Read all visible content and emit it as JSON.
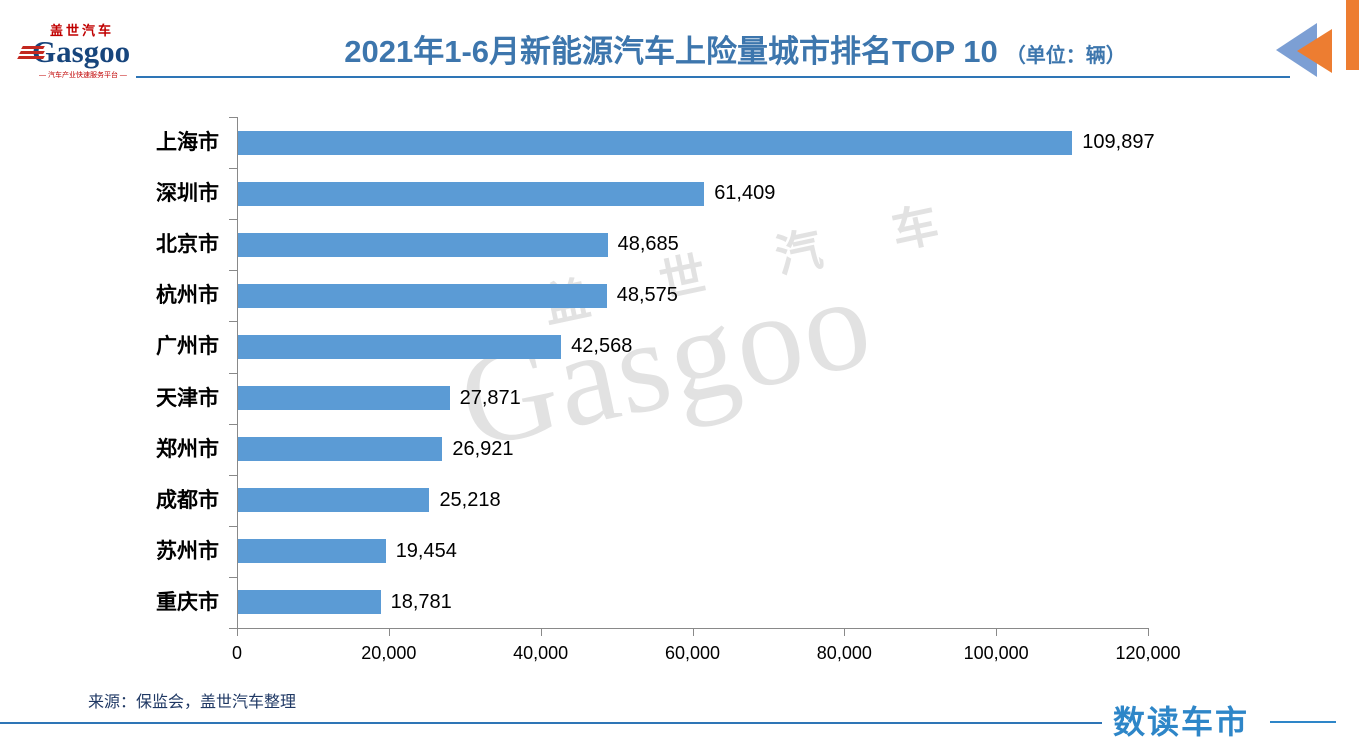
{
  "header": {
    "logo": {
      "cn": "盖世汽车",
      "en": "Gasgoo",
      "tagline": "— 汽车产业快速服务平台 —"
    },
    "title": "2021年1-6月新能源汽车上险量城市排名TOP 10",
    "unit": "（单位：辆）"
  },
  "watermark": {
    "cn": "盖 世 汽 车",
    "en": "Gasgoo"
  },
  "chart_data": {
    "type": "bar",
    "orientation": "horizontal",
    "title": "2021年1-6月新能源汽车上险量城市排名TOP 10",
    "unit": "辆",
    "categories": [
      "上海市",
      "深圳市",
      "北京市",
      "杭州市",
      "广州市",
      "天津市",
      "郑州市",
      "成都市",
      "苏州市",
      "重庆市"
    ],
    "values": [
      109897,
      61409,
      48685,
      48575,
      42568,
      27871,
      26921,
      25218,
      19454,
      18781
    ],
    "value_labels": [
      "109,897",
      "61,409",
      "48,685",
      "48,575",
      "42,568",
      "27,871",
      "26,921",
      "25,218",
      "19,454",
      "18,781"
    ],
    "xlim": [
      0,
      120000
    ],
    "x_ticks": [
      0,
      20000,
      40000,
      60000,
      80000,
      100000,
      120000
    ],
    "x_tick_labels": [
      "0",
      "20,000",
      "40,000",
      "60,000",
      "80,000",
      "100,000",
      "120,000"
    ],
    "bar_color": "#5B9BD5",
    "grid": false,
    "legend": false
  },
  "footer": {
    "source": "来源：保监会，盖世汽车整理",
    "brand": "数读车市"
  },
  "colors": {
    "title_blue": "#3D76AD",
    "bar_blue": "#5B9BD5",
    "header_line_blue": "#2E75B6",
    "axis_gray": "#898989",
    "source_navy": "#1F3864",
    "brand_blue": "#2E86C8",
    "accent_orange": "#ED7D31",
    "triangle_blue": "#7C9FD4",
    "logo_red": "#C00000",
    "logo_navy": "#17457C",
    "watermark_gray": "#E2E2E2"
  }
}
